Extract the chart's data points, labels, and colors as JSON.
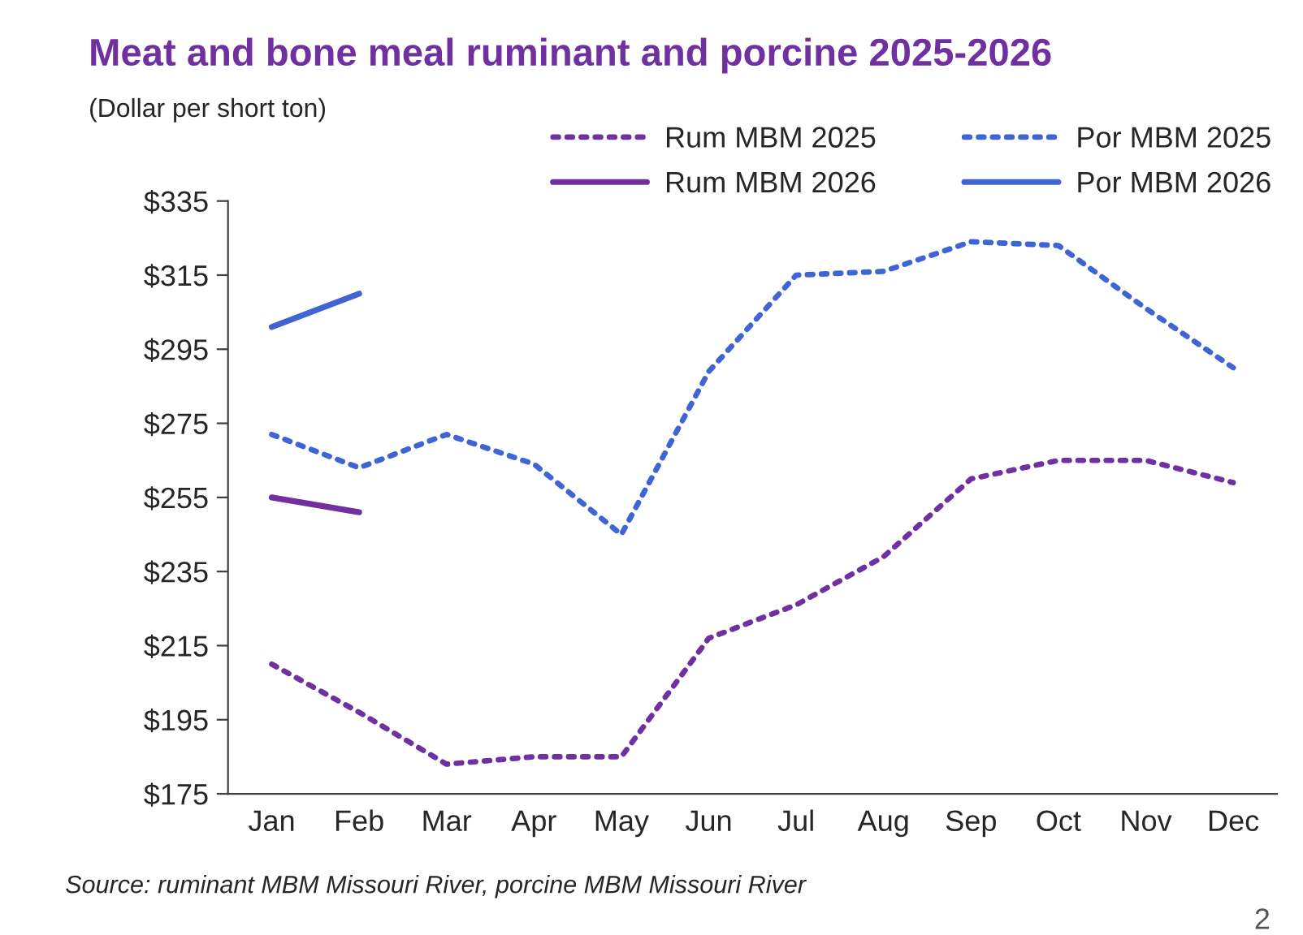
{
  "chart_data": {
    "type": "line",
    "title": "Meat and bone meal ruminant and porcine 2025-2026",
    "subtitle": "(Dollar per short ton)",
    "categories": [
      "Jan",
      "Feb",
      "Mar",
      "Apr",
      "May",
      "Jun",
      "Jul",
      "Aug",
      "Sep",
      "Oct",
      "Nov",
      "Dec"
    ],
    "series": [
      {
        "name": "Rum MBM 2025",
        "color": "#7030a0",
        "line_style": "dotted",
        "values": [
          210,
          197,
          183,
          185,
          185,
          217,
          226,
          239,
          260,
          265,
          265,
          259
        ]
      },
      {
        "name": "Rum MBM 2026",
        "color": "#7030a0",
        "line_style": "solid",
        "values": [
          255,
          251,
          null,
          null,
          null,
          null,
          null,
          null,
          null,
          null,
          null,
          null
        ]
      },
      {
        "name": "Por MBM 2025",
        "color": "#3f64d4",
        "line_style": "dotted",
        "values": [
          272,
          263,
          272,
          264,
          245,
          289,
          315,
          316,
          324,
          323,
          306,
          290
        ]
      },
      {
        "name": "Por MBM 2026",
        "color": "#3f64d4",
        "line_style": "solid",
        "values": [
          301,
          310,
          null,
          null,
          null,
          null,
          null,
          null,
          null,
          null,
          null,
          null
        ]
      }
    ],
    "ylim": [
      175,
      335
    ],
    "yticks": [
      {
        "value": 175,
        "label": "$175"
      },
      {
        "value": 195,
        "label": "$195"
      },
      {
        "value": 215,
        "label": "$215"
      },
      {
        "value": 235,
        "label": "$235"
      },
      {
        "value": 255,
        "label": "$255"
      },
      {
        "value": 275,
        "label": "$275"
      },
      {
        "value": 295,
        "label": "$295"
      },
      {
        "value": 315,
        "label": "$315"
      },
      {
        "value": 335,
        "label": "$335"
      }
    ],
    "grid": false,
    "legend": "top right",
    "marker": "none",
    "annotations": [
      "Source: ruminant MBM Missouri River, porcine MBM Missouri River",
      "2"
    ]
  }
}
